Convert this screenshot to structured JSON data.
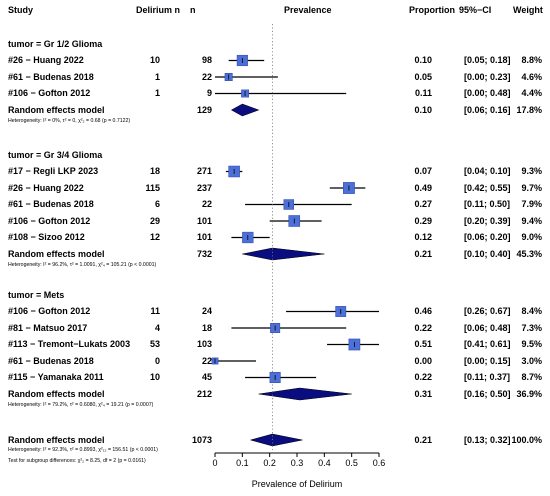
{
  "chart_data": {
    "type": "forest",
    "columns": {
      "study": "Study",
      "delirium_n": "Delirium n",
      "n": "n",
      "prevalence": "Prevalence",
      "proportion": "Proportion",
      "ci": "95%−CI",
      "weight": "Weight"
    },
    "xlabel": "Prevalence of Delirium",
    "xlim": [
      0,
      0.6
    ],
    "xticks": [
      "0",
      "0.1",
      "0.2",
      "0.3",
      "0.4",
      "0.5",
      "0.6"
    ],
    "reference_line": 0.21,
    "subgroups": [
      {
        "title": "tumor = Gr 1/2 Glioma",
        "studies": [
          {
            "label": "#26 − Huang 2022",
            "events": "10",
            "n": "98",
            "prop": 0.1,
            "lo": 0.05,
            "hi": 0.18,
            "prop_text": "0.10",
            "ci_text": "[0.05; 0.18]",
            "weight_text": "8.8%"
          },
          {
            "label": "#61 − Budenas 2018",
            "events": "1",
            "n": "22",
            "prop": 0.05,
            "lo": 0.0,
            "hi": 0.23,
            "prop_text": "0.05",
            "ci_text": "[0.00; 0.23]",
            "weight_text": "4.6%"
          },
          {
            "label": "#106 − Gofton 2012",
            "events": "1",
            "n": "9",
            "prop": 0.11,
            "lo": 0.0,
            "hi": 0.48,
            "prop_text": "0.11",
            "ci_text": "[0.00; 0.48]",
            "weight_text": "4.4%"
          }
        ],
        "pooled": {
          "label": "Random effects model",
          "n": "129",
          "prop": 0.1,
          "lo": 0.06,
          "hi": 0.16,
          "prop_text": "0.10",
          "ci_text": "[0.06; 0.16]",
          "weight_text": "17.8%"
        },
        "heterogeneity": "Heterogeneity: I² = 0%, τ² = 0, χ²₂ = 0.68 (p = 0.7122)"
      },
      {
        "title": "tumor = Gr 3/4 Glioma",
        "studies": [
          {
            "label": "#17 − Regli LKP 2023",
            "events": "18",
            "n": "271",
            "prop": 0.07,
            "lo": 0.04,
            "hi": 0.1,
            "prop_text": "0.07",
            "ci_text": "[0.04; 0.10]",
            "weight_text": "9.3%"
          },
          {
            "label": "#26 − Huang 2022",
            "events": "115",
            "n": "237",
            "prop": 0.49,
            "lo": 0.42,
            "hi": 0.55,
            "prop_text": "0.49",
            "ci_text": "[0.42; 0.55]",
            "weight_text": "9.7%"
          },
          {
            "label": "#61 − Budenas 2018",
            "events": "6",
            "n": "22",
            "prop": 0.27,
            "lo": 0.11,
            "hi": 0.5,
            "prop_text": "0.27",
            "ci_text": "[0.11; 0.50]",
            "weight_text": "7.9%"
          },
          {
            "label": "#106 − Gofton 2012",
            "events": "29",
            "n": "101",
            "prop": 0.29,
            "lo": 0.2,
            "hi": 0.39,
            "prop_text": "0.29",
            "ci_text": "[0.20; 0.39]",
            "weight_text": "9.4%"
          },
          {
            "label": "#108 − Sizoo 2012",
            "events": "12",
            "n": "101",
            "prop": 0.12,
            "lo": 0.06,
            "hi": 0.2,
            "prop_text": "0.12",
            "ci_text": "[0.06; 0.20]",
            "weight_text": "9.0%"
          }
        ],
        "pooled": {
          "label": "Random effects model",
          "n": "732",
          "prop": 0.21,
          "lo": 0.1,
          "hi": 0.4,
          "prop_text": "0.21",
          "ci_text": "[0.10; 0.40]",
          "weight_text": "45.3%"
        },
        "heterogeneity": "Heterogeneity: I² = 96.2%, τ² = 1.0091, χ²₄ = 105.21 (p < 0.0001)"
      },
      {
        "title": "tumor = Mets",
        "studies": [
          {
            "label": "#106 − Gofton 2012",
            "events": "11",
            "n": "24",
            "prop": 0.46,
            "lo": 0.26,
            "hi": 0.67,
            "prop_text": "0.46",
            "ci_text": "[0.26; 0.67]",
            "weight_text": "8.4%"
          },
          {
            "label": "#81 − Matsuo 2017",
            "events": "4",
            "n": "18",
            "prop": 0.22,
            "lo": 0.06,
            "hi": 0.48,
            "prop_text": "0.22",
            "ci_text": "[0.06; 0.48]",
            "weight_text": "7.3%"
          },
          {
            "label": "#113 − Tremont−Lukats 2003",
            "events": "53",
            "n": "103",
            "prop": 0.51,
            "lo": 0.41,
            "hi": 0.61,
            "prop_text": "0.51",
            "ci_text": "[0.41; 0.61]",
            "weight_text": "9.5%"
          },
          {
            "label": "#61 − Budenas 2018",
            "events": "0",
            "n": "22",
            "prop": 0.0,
            "lo": 0.0,
            "hi": 0.15,
            "prop_text": "0.00",
            "ci_text": "[0.00; 0.15]",
            "weight_text": "3.0%"
          },
          {
            "label": "#115 − Yamanaka 2011",
            "events": "10",
            "n": "45",
            "prop": 0.22,
            "lo": 0.11,
            "hi": 0.37,
            "prop_text": "0.22",
            "ci_text": "[0.11; 0.37]",
            "weight_text": "8.7%"
          }
        ],
        "pooled": {
          "label": "Random effects model",
          "n": "212",
          "prop": 0.31,
          "lo": 0.16,
          "hi": 0.5,
          "prop_text": "0.31",
          "ci_text": "[0.16; 0.50]",
          "weight_text": "36.9%"
        },
        "heterogeneity": "Heterogeneity: I² = 79.2%, τ² = 0.6080, χ²₄ = 19.21 (p = 0.0007)"
      }
    ],
    "overall": {
      "label": "Random effects model",
      "n": "1073",
      "prop": 0.21,
      "lo": 0.13,
      "hi": 0.32,
      "prop_text": "0.21",
      "ci_text": "[0.13; 0.32]",
      "weight_text": "100.0%",
      "heterogeneity": "Heterogeneity: I² = 92.3%, τ² = 0.8993, χ²₁₂ = 156.51 (p < 0.0001)",
      "subgroup_test": "Test for subgroup differences: χ²₂ = 8.25, df = 2 (p = 0.0161)"
    },
    "colors": {
      "square": "#4d6fd8",
      "diamond": "#0a0d80",
      "line": "#000000",
      "refline": "#777777"
    }
  }
}
